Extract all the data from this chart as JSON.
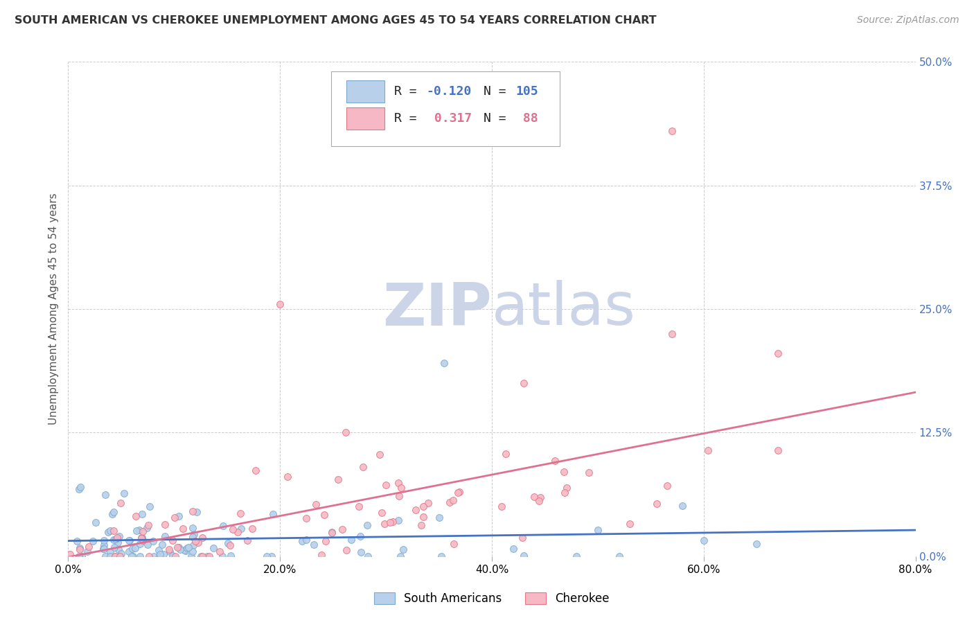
{
  "title": "SOUTH AMERICAN VS CHEROKEE UNEMPLOYMENT AMONG AGES 45 TO 54 YEARS CORRELATION CHART",
  "source": "Source: ZipAtlas.com",
  "ylabel": "Unemployment Among Ages 45 to 54 years",
  "xlim": [
    0.0,
    0.8
  ],
  "ylim": [
    0.0,
    0.5
  ],
  "xtick_vals": [
    0.0,
    0.2,
    0.4,
    0.6,
    0.8
  ],
  "xtick_labels": [
    "0.0%",
    "20.0%",
    "40.0%",
    "60.0%",
    "80.0%"
  ],
  "ytick_vals": [
    0.0,
    0.125,
    0.25,
    0.375,
    0.5
  ],
  "ytick_labels": [
    "0.0%",
    "12.5%",
    "25.0%",
    "37.5%",
    "50.0%"
  ],
  "south_american_R": -0.12,
  "south_american_N": 105,
  "cherokee_R": 0.317,
  "cherokee_N": 88,
  "sa_face_color": "#b8d0ea",
  "sa_edge_color": "#7aabcf",
  "ch_face_color": "#f5b8c4",
  "ch_edge_color": "#e07888",
  "sa_line_color": "#4472c4",
  "ch_line_color": "#e07090",
  "right_tick_color": "#4472c4",
  "watermark_color": "#ccd5e8",
  "bg_color": "#ffffff",
  "title_color": "#333333",
  "source_color": "#999999",
  "ylabel_color": "#555555",
  "grid_color": "#cccccc",
  "title_fontsize": 11.5,
  "source_fontsize": 10,
  "tick_fontsize": 11,
  "legend_fontsize": 13,
  "ylabel_fontsize": 11,
  "watermark_fontsize": 62,
  "scatter_size": 50,
  "line_width": 2.0,
  "legend_R_color_sa": "#4472c4",
  "legend_R_color_ch": "#e07090",
  "legend_N_color_sa": "#4472c4",
  "legend_N_color_ch": "#e07090"
}
